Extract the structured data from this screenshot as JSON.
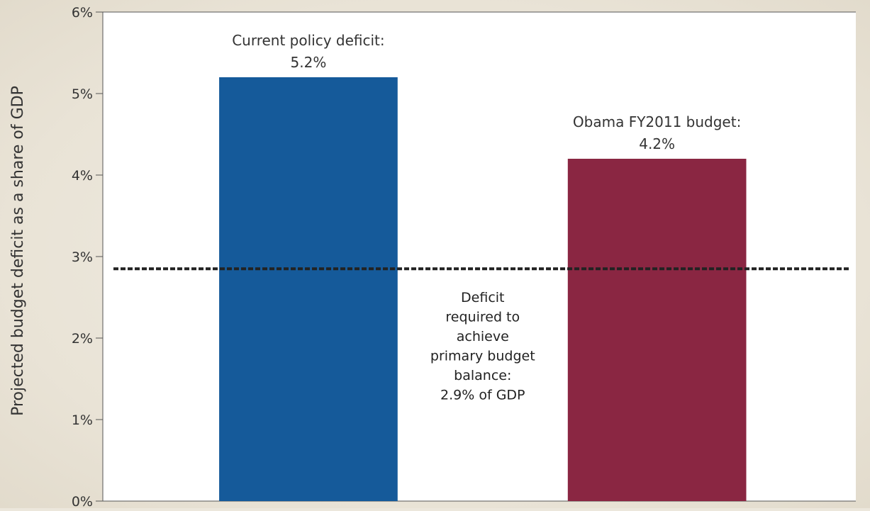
{
  "chart_data": {
    "type": "bar",
    "title": "",
    "xlabel": "",
    "ylabel": "Projected budget deficit as a share of GDP",
    "ylim": [
      0,
      6
    ],
    "yticks": [
      0,
      1,
      2,
      3,
      4,
      5,
      6
    ],
    "ytick_labels": [
      "0%",
      "1%",
      "2%",
      "3%",
      "4%",
      "5%",
      "6%"
    ],
    "grid": false,
    "legend": "none",
    "bars": [
      {
        "label_line1": "Current policy deficit:",
        "label_line2": "5.2%",
        "value": 5.2,
        "color": "#155a9a"
      },
      {
        "label_line1": "Obama FY2011 budget:",
        "label_line2": "4.2%",
        "value": 4.2,
        "color": "#8a2642"
      }
    ],
    "reference_line": {
      "value": 2.85,
      "style": "dashed",
      "color": "#222222",
      "annotation": [
        "Deficit",
        "required to",
        "achieve",
        "primary budget",
        "balance:",
        "2.9% of GDP"
      ]
    }
  }
}
